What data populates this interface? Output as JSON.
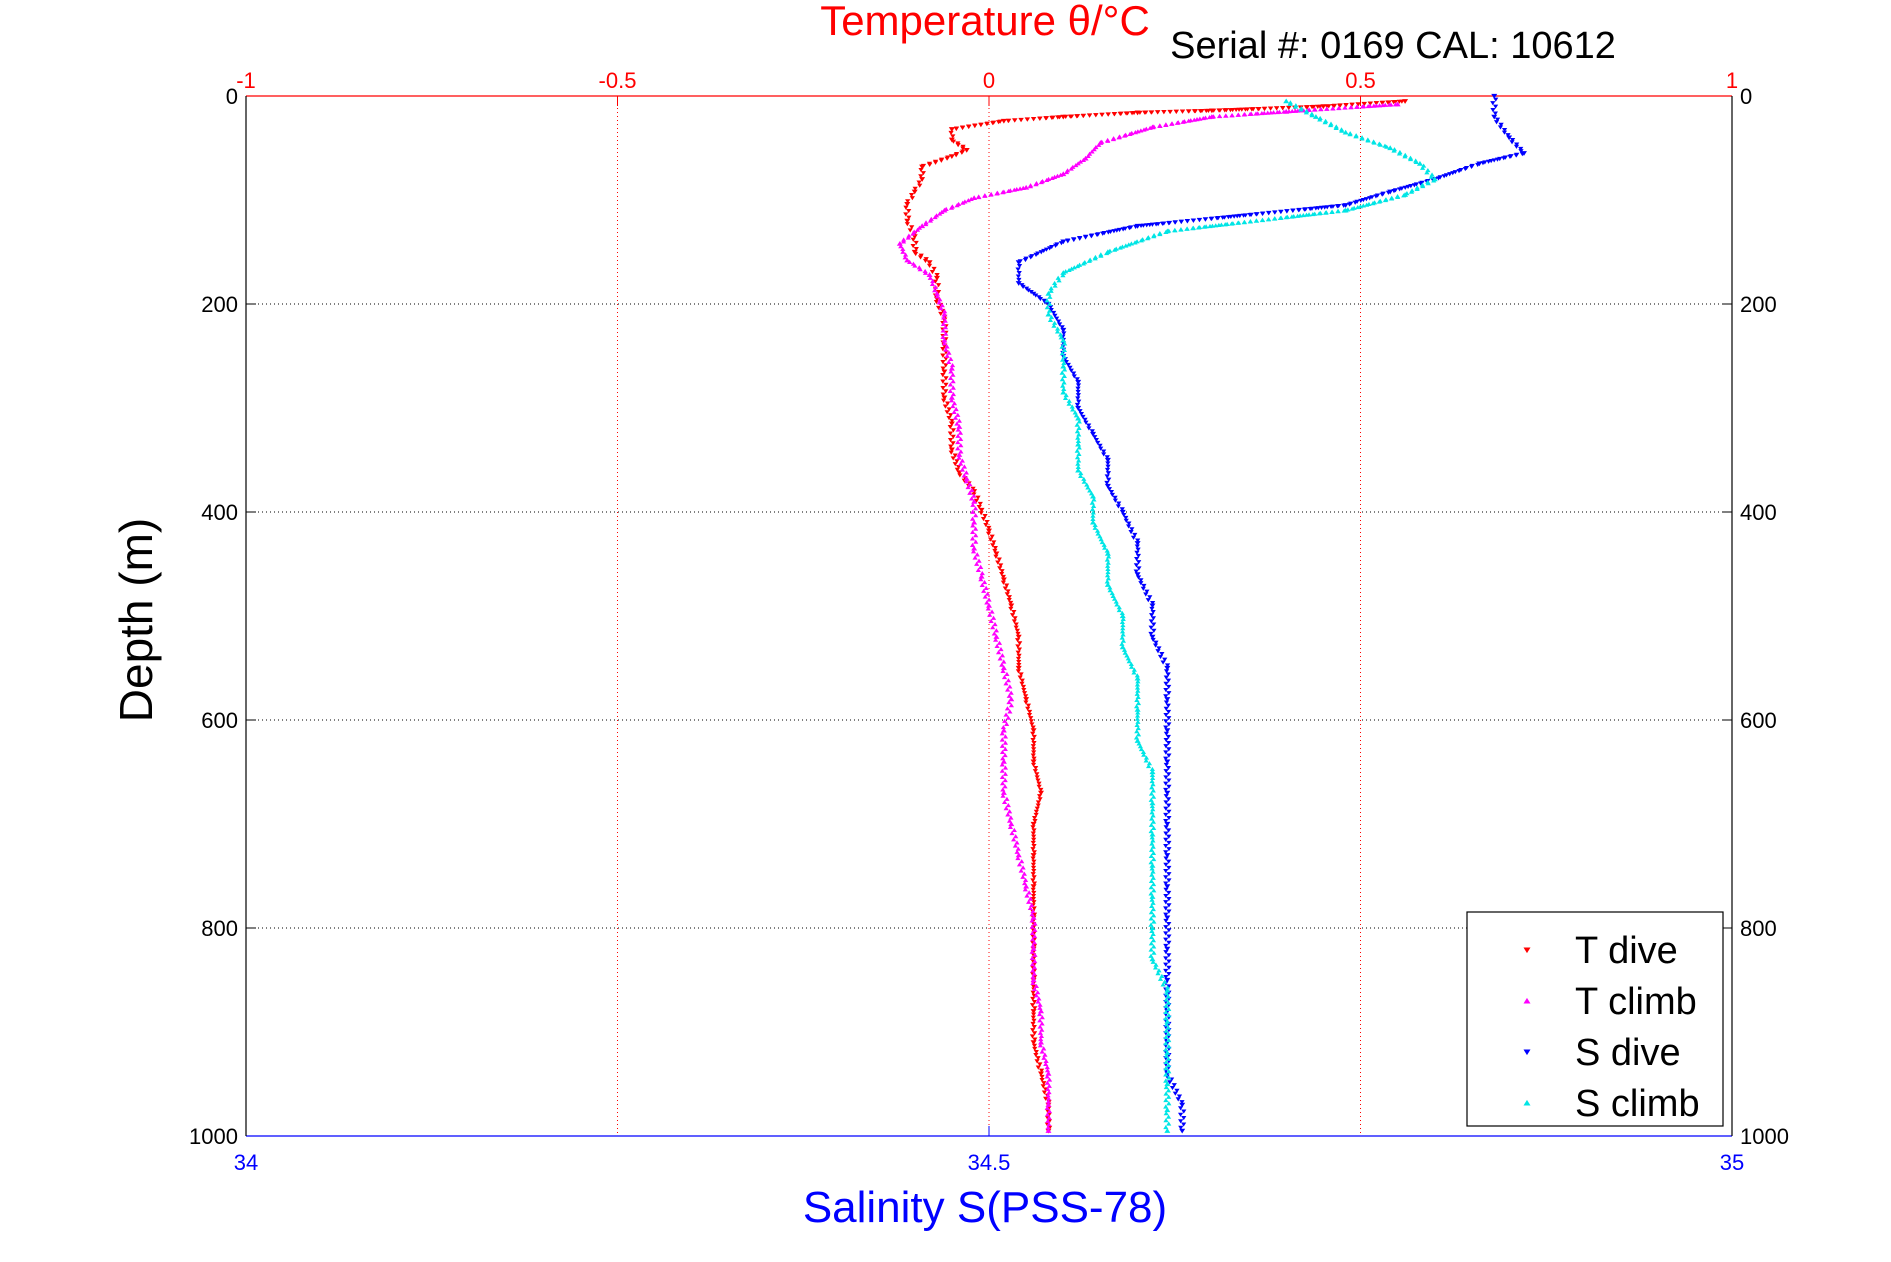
{
  "header": {
    "top_axis_title": "Temperature θ/°C",
    "serial_info": "Serial #: 0169 CAL: 10612"
  },
  "chart_data": {
    "type": "scatter",
    "ylabel": "Depth (m)",
    "xlabel_top": "Temperature θ/°C",
    "xlabel_bottom": "Salinity S(PSS-78)",
    "y_range": [
      0,
      1000
    ],
    "y_inverted": true,
    "y_ticks": [
      "0",
      "200",
      "400",
      "600",
      "800",
      "1000"
    ],
    "x_top_range": [
      -1,
      1
    ],
    "x_top_ticks": [
      "-1",
      "-0.5",
      "0",
      "0.5",
      "1"
    ],
    "x_bottom_range": [
      34,
      35
    ],
    "x_bottom_ticks": [
      "34",
      "34.5",
      "35"
    ],
    "grid": true,
    "legend_position": "bottom-right",
    "colors": {
      "top_axis": "#ff0000",
      "bottom_axis": "#0000ff",
      "left_axis": "#000000"
    },
    "series": [
      {
        "name": "T dive",
        "axis": "top",
        "color": "#ff0000",
        "marker": "triangle-down",
        "points": [
          [
            0.56,
            5
          ],
          [
            0.45,
            10
          ],
          [
            0.3,
            14
          ],
          [
            0.2,
            16
          ],
          [
            0.1,
            20
          ],
          [
            0.02,
            24
          ],
          [
            -0.05,
            32
          ],
          [
            -0.05,
            42
          ],
          [
            -0.03,
            52
          ],
          [
            -0.05,
            58
          ],
          [
            -0.09,
            68
          ],
          [
            -0.09,
            80
          ],
          [
            -0.1,
            92
          ],
          [
            -0.11,
            104
          ],
          [
            -0.11,
            120
          ],
          [
            -0.1,
            135
          ],
          [
            -0.1,
            150
          ],
          [
            -0.08,
            160
          ],
          [
            -0.07,
            175
          ],
          [
            -0.07,
            195
          ],
          [
            -0.06,
            215
          ],
          [
            -0.06,
            240
          ],
          [
            -0.06,
            265
          ],
          [
            -0.06,
            290
          ],
          [
            -0.05,
            315
          ],
          [
            -0.05,
            340
          ],
          [
            -0.04,
            362
          ],
          [
            -0.02,
            380
          ],
          [
            -0.01,
            398
          ],
          [
            0.0,
            418
          ],
          [
            0.01,
            440
          ],
          [
            0.02,
            465
          ],
          [
            0.03,
            490
          ],
          [
            0.04,
            520
          ],
          [
            0.04,
            550
          ],
          [
            0.05,
            580
          ],
          [
            0.06,
            610
          ],
          [
            0.06,
            640
          ],
          [
            0.07,
            670
          ],
          [
            0.06,
            700
          ],
          [
            0.06,
            730
          ],
          [
            0.06,
            760
          ],
          [
            0.06,
            790
          ],
          [
            0.06,
            820
          ],
          [
            0.06,
            850
          ],
          [
            0.06,
            880
          ],
          [
            0.06,
            910
          ],
          [
            0.07,
            940
          ],
          [
            0.08,
            970
          ],
          [
            0.08,
            995
          ]
        ]
      },
      {
        "name": "T climb",
        "axis": "top",
        "color": "#ff00ff",
        "marker": "triangle-up",
        "points": [
          [
            0.55,
            8
          ],
          [
            0.4,
            15
          ],
          [
            0.3,
            20
          ],
          [
            0.22,
            30
          ],
          [
            0.15,
            45
          ],
          [
            0.13,
            60
          ],
          [
            0.1,
            75
          ],
          [
            0.05,
            88
          ],
          [
            -0.02,
            98
          ],
          [
            -0.06,
            110
          ],
          [
            -0.09,
            125
          ],
          [
            -0.12,
            142
          ],
          [
            -0.11,
            158
          ],
          [
            -0.08,
            172
          ],
          [
            -0.07,
            190
          ],
          [
            -0.06,
            210
          ],
          [
            -0.06,
            235
          ],
          [
            -0.05,
            262
          ],
          [
            -0.05,
            290
          ],
          [
            -0.04,
            318
          ],
          [
            -0.04,
            345
          ],
          [
            -0.03,
            368
          ],
          [
            -0.02,
            390
          ],
          [
            -0.02,
            410
          ],
          [
            -0.02,
            435
          ],
          [
            -0.01,
            462
          ],
          [
            0.0,
            490
          ],
          [
            0.01,
            520
          ],
          [
            0.02,
            550
          ],
          [
            0.03,
            580
          ],
          [
            0.02,
            610
          ],
          [
            0.02,
            640
          ],
          [
            0.02,
            670
          ],
          [
            0.03,
            700
          ],
          [
            0.04,
            730
          ],
          [
            0.05,
            760
          ],
          [
            0.06,
            790
          ],
          [
            0.06,
            820
          ],
          [
            0.06,
            850
          ],
          [
            0.07,
            880
          ],
          [
            0.07,
            910
          ],
          [
            0.08,
            940
          ],
          [
            0.08,
            970
          ],
          [
            0.08,
            995
          ]
        ]
      },
      {
        "name": "S dive",
        "axis": "bottom",
        "color": "#0000ff",
        "marker": "triangle-down",
        "points": [
          [
            34.84,
            0
          ],
          [
            34.84,
            20
          ],
          [
            34.85,
            40
          ],
          [
            34.86,
            55
          ],
          [
            34.83,
            65
          ],
          [
            34.8,
            80
          ],
          [
            34.77,
            92
          ],
          [
            34.74,
            105
          ],
          [
            34.6,
            125
          ],
          [
            34.55,
            140
          ],
          [
            34.52,
            160
          ],
          [
            34.52,
            180
          ],
          [
            34.54,
            200
          ],
          [
            34.55,
            225
          ],
          [
            34.55,
            250
          ],
          [
            34.56,
            275
          ],
          [
            34.56,
            300
          ],
          [
            34.57,
            325
          ],
          [
            34.58,
            350
          ],
          [
            34.58,
            375
          ],
          [
            34.59,
            400
          ],
          [
            34.6,
            430
          ],
          [
            34.6,
            460
          ],
          [
            34.61,
            490
          ],
          [
            34.61,
            520
          ],
          [
            34.62,
            550
          ],
          [
            34.62,
            580
          ],
          [
            34.62,
            610
          ],
          [
            34.62,
            640
          ],
          [
            34.62,
            670
          ],
          [
            34.62,
            700
          ],
          [
            34.62,
            730
          ],
          [
            34.62,
            760
          ],
          [
            34.62,
            790
          ],
          [
            34.62,
            820
          ],
          [
            34.62,
            850
          ],
          [
            34.62,
            880
          ],
          [
            34.62,
            910
          ],
          [
            34.62,
            940
          ],
          [
            34.63,
            970
          ],
          [
            34.63,
            995
          ]
        ]
      },
      {
        "name": "S climb",
        "axis": "bottom",
        "color": "#00e5e5",
        "marker": "triangle-up",
        "points": [
          [
            34.7,
            5
          ],
          [
            34.72,
            20
          ],
          [
            34.74,
            35
          ],
          [
            34.77,
            50
          ],
          [
            34.79,
            65
          ],
          [
            34.8,
            80
          ],
          [
            34.78,
            95
          ],
          [
            34.74,
            110
          ],
          [
            34.62,
            130
          ],
          [
            34.58,
            150
          ],
          [
            34.55,
            170
          ],
          [
            34.54,
            190
          ],
          [
            34.54,
            210
          ],
          [
            34.55,
            235
          ],
          [
            34.55,
            260
          ],
          [
            34.55,
            285
          ],
          [
            34.56,
            310
          ],
          [
            34.56,
            335
          ],
          [
            34.56,
            360
          ],
          [
            34.57,
            385
          ],
          [
            34.57,
            410
          ],
          [
            34.58,
            440
          ],
          [
            34.58,
            470
          ],
          [
            34.59,
            500
          ],
          [
            34.59,
            530
          ],
          [
            34.6,
            560
          ],
          [
            34.6,
            590
          ],
          [
            34.6,
            620
          ],
          [
            34.61,
            650
          ],
          [
            34.61,
            680
          ],
          [
            34.61,
            710
          ],
          [
            34.61,
            740
          ],
          [
            34.61,
            770
          ],
          [
            34.61,
            800
          ],
          [
            34.61,
            830
          ],
          [
            34.62,
            860
          ],
          [
            34.62,
            890
          ],
          [
            34.62,
            920
          ],
          [
            34.62,
            950
          ],
          [
            34.62,
            975
          ],
          [
            34.62,
            995
          ]
        ]
      }
    ]
  }
}
